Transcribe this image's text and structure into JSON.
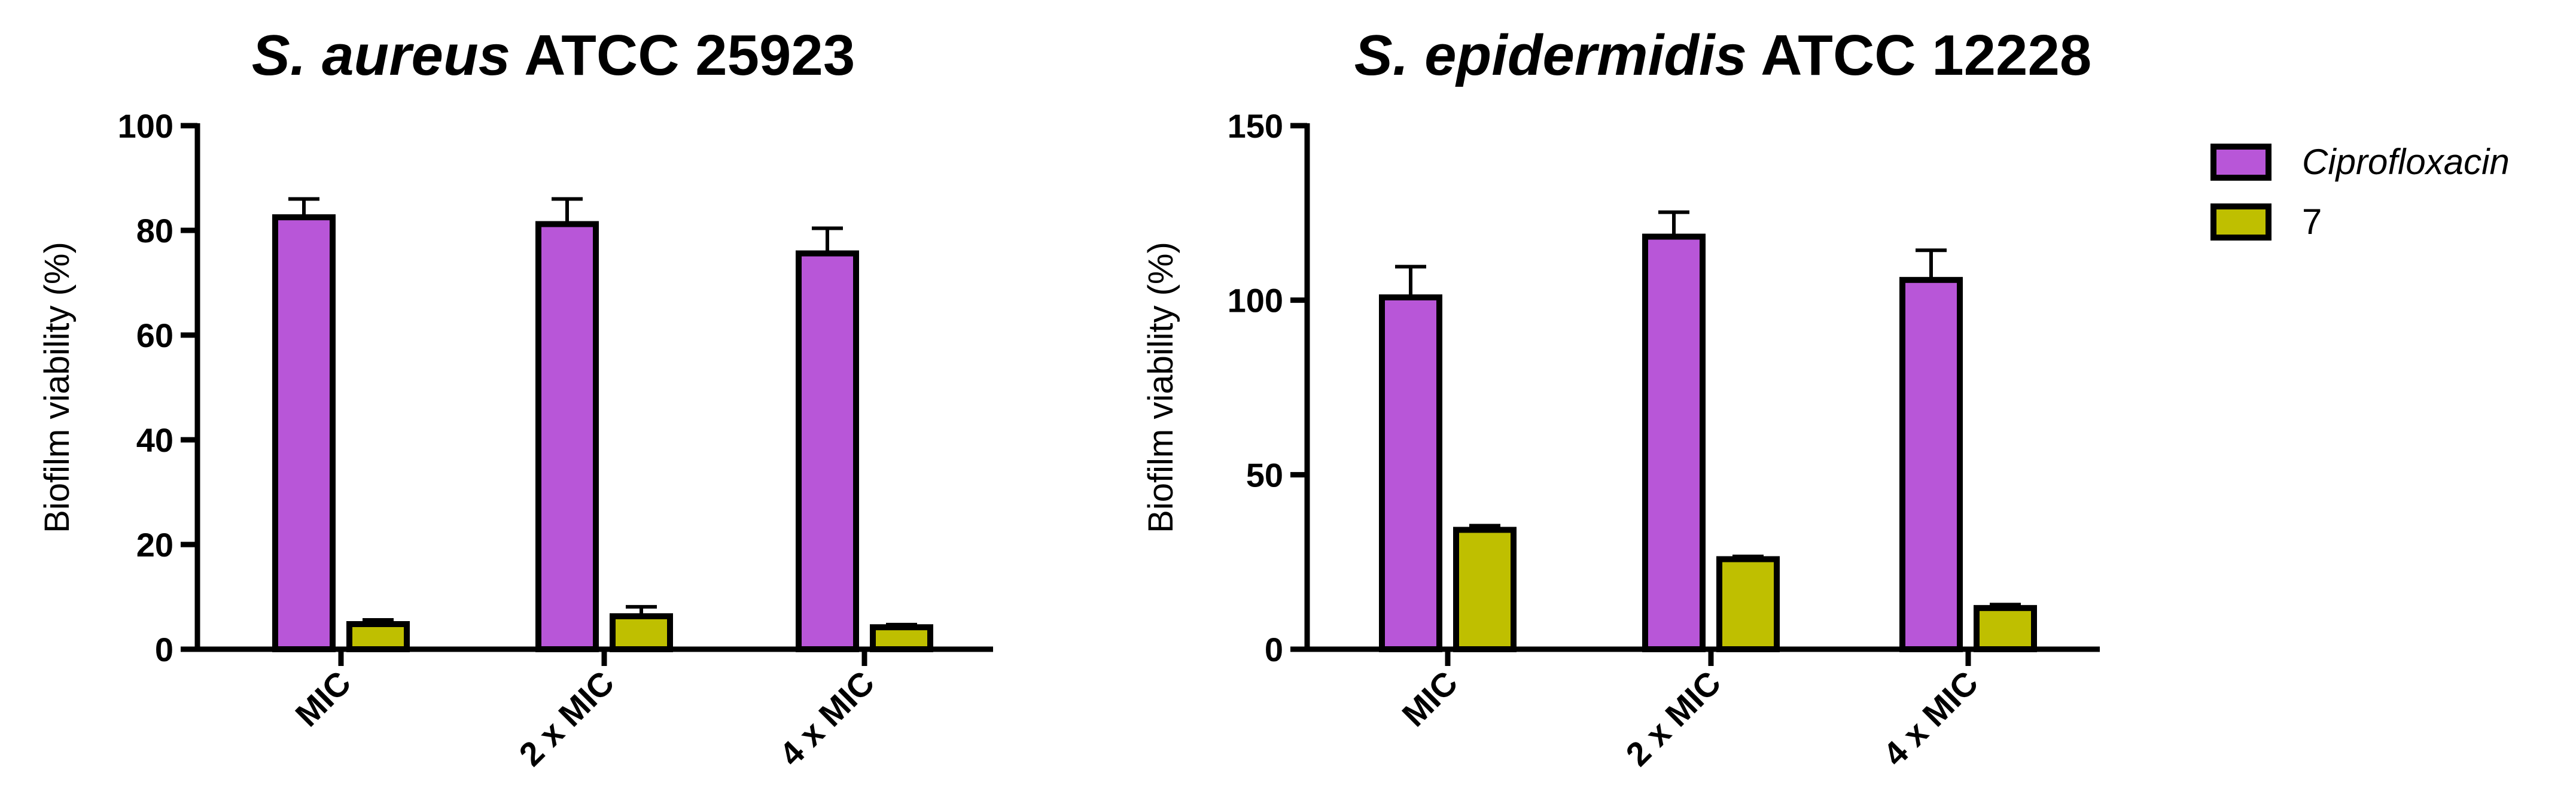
{
  "legend": [
    {
      "name": "Ciprofloxacin",
      "italic": true,
      "color": "#b856d8"
    },
    {
      "name": "7",
      "italic": false,
      "color": "#bfbf00"
    }
  ],
  "chart_data": [
    {
      "type": "bar",
      "title_italic": "S. aureus",
      "title_rest": "ATCC 25923",
      "ylabel": "Biofilm viability (%)",
      "xlabel": "",
      "categories": [
        "MIC",
        "2 x MIC",
        "4 x MIC"
      ],
      "ylim": [
        0,
        100
      ],
      "yticks": [
        0,
        20,
        40,
        60,
        80,
        100
      ],
      "series": [
        {
          "name": "Ciprofloxacin",
          "color": "#b856d8",
          "values": [
            82.5,
            81.2,
            75.6
          ],
          "errors": [
            3.5,
            4.8,
            4.8
          ]
        },
        {
          "name": "7",
          "color": "#bfbf00",
          "values": [
            4.8,
            6.3,
            4.2
          ],
          "errors": [
            0.8,
            1.8,
            0.5
          ]
        }
      ]
    },
    {
      "type": "bar",
      "title_italic": "S. epidermidis",
      "title_rest": "ATCC 12228",
      "ylabel": "Biofilm viability (%)",
      "xlabel": "",
      "categories": [
        "MIC",
        "2 x MIC",
        "4 x MIC"
      ],
      "ylim": [
        0,
        150
      ],
      "yticks": [
        0,
        50,
        100,
        150
      ],
      "series": [
        {
          "name": "Ciprofloxacin",
          "color": "#b856d8",
          "values": [
            100.8,
            118.2,
            105.8
          ],
          "errors": [
            8.8,
            7.0,
            8.5
          ]
        },
        {
          "name": "7",
          "color": "#bfbf00",
          "values": [
            34.2,
            25.8,
            11.8
          ],
          "errors": [
            1.2,
            0.8,
            1.0
          ]
        }
      ]
    }
  ]
}
